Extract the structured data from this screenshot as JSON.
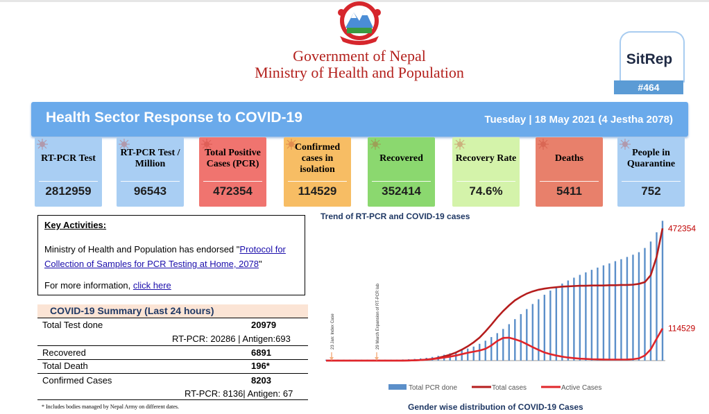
{
  "header": {
    "org_line1": "Government of Nepal",
    "org_line2": "Ministry of Health and Population",
    "sitrep_label": "SitRep",
    "sitrep_number": "#464"
  },
  "banner": {
    "title": "Health Sector Response to COVID-19",
    "date": "Tuesday | 18 May 2021 (4 Jestha 2078)"
  },
  "cards": [
    {
      "label": "RT-PCR Test",
      "value": "2812959",
      "color": "#a9cef3"
    },
    {
      "label": "RT-PCR Test / Million",
      "value": "96543",
      "color": "#a9cef3"
    },
    {
      "label": "Total Positive Cases (PCR)",
      "value": "472354",
      "color": "#f0746f"
    },
    {
      "label": "Confirmed cases in isolation",
      "value": "114529",
      "color": "#f7bd64"
    },
    {
      "label": "Recovered",
      "value": "352414",
      "color": "#8bd86f"
    },
    {
      "label": "Recovery Rate",
      "value": "74.6%",
      "color": "#d4f3aa"
    },
    {
      "label": "Deaths",
      "value": "5411",
      "color": "#e8806b"
    },
    {
      "label": "People in Quarantine",
      "value": "752",
      "color": "#a9cef3"
    }
  ],
  "key_activities": {
    "title": "Key Activities:",
    "text_before": "Ministry of Health and Population has endorsed \"",
    "link_text": "Protocol for Collection of Samples for PCR Testing at Home, 2078",
    "text_after": "\"",
    "more_text": "For more information, ",
    "more_link": "click here"
  },
  "summary": {
    "title": "COVID-19 Summary (Last 24 hours)",
    "total_test_label": "Total Test done",
    "total_test_value": "20979",
    "total_test_breakdown": "RT-PCR: 20286  | Antigen:693",
    "recovered_label": "Recovered",
    "recovered_value": "6891",
    "death_label": "Total Death",
    "death_value": "196*",
    "confirmed_label": "Confirmed Cases",
    "confirmed_value": "8203",
    "confirmed_breakdown": "RT-PCR: 8136| Antigen: 67",
    "footnote": "* Includes bodies managed by Nepal Army on different dates."
  },
  "chart_data": {
    "type": "line",
    "title": "Trend of RT-PCR and COVID-19 cases",
    "annotations": [
      "23 Jan: Index Case",
      "29 March Expansion of RT-PCR lab"
    ],
    "end_labels": [
      "472354",
      "114529"
    ],
    "series": [
      {
        "name": "Total PCR done",
        "kind": "bar",
        "color": "#5b8fc9",
        "values": [
          0.3,
          0.3,
          0.3,
          0.3,
          0.3,
          0.3,
          0.3,
          0.3,
          0.3,
          0.3,
          0.3,
          0.3,
          0.3,
          0.4,
          0.5,
          0.6,
          0.8,
          1.0,
          1.3,
          1.7,
          2.1,
          2.6,
          3.1,
          3.7,
          4.3,
          5.0,
          6.0,
          7.1,
          8.4,
          9.8,
          11.3,
          13.0,
          14.8,
          16.6,
          18.4,
          20.2,
          21.9,
          23.5,
          25.0,
          26.3,
          27.5,
          28.6,
          29.6,
          30.6,
          31.5,
          32.4,
          33.2,
          34.0,
          34.7,
          35.5,
          36.2,
          37.0,
          37.8,
          38.7,
          40.2,
          42.5,
          45.8,
          49.9
        ]
      },
      {
        "name": "Total  cases",
        "kind": "line",
        "color": "#b51d1d",
        "values": [
          0,
          0,
          0,
          0,
          0,
          0,
          0,
          0,
          0,
          0,
          0,
          0,
          0,
          0,
          0.05,
          0.1,
          0.2,
          0.35,
          0.6,
          1.0,
          1.5,
          2.1,
          2.9,
          3.9,
          5.1,
          6.5,
          8.2,
          10.4,
          12.8,
          15.4,
          17.7,
          19.7,
          21.5,
          22.8,
          23.9,
          24.7,
          25.3,
          25.7,
          26.0,
          26.2,
          26.4,
          26.5,
          26.6,
          26.7,
          26.7,
          26.8,
          26.8,
          26.8,
          26.9,
          26.9,
          27.0,
          27.0,
          27.1,
          27.4,
          28.0,
          30.5,
          37.0,
          47.2
        ]
      },
      {
        "name": "Active Cases",
        "kind": "line",
        "color": "#e0252a",
        "values": [
          0,
          0,
          0,
          0,
          0,
          0,
          0,
          0,
          0,
          0,
          0,
          0,
          0,
          0,
          0.05,
          0.1,
          0.2,
          0.35,
          0.55,
          0.8,
          1.1,
          1.4,
          1.8,
          2.3,
          2.8,
          3.2,
          3.6,
          4.2,
          5.4,
          7.0,
          8.1,
          8.2,
          7.6,
          6.9,
          5.9,
          4.8,
          3.8,
          2.9,
          2.3,
          1.8,
          1.4,
          1.1,
          0.9,
          0.7,
          0.6,
          0.5,
          0.45,
          0.4,
          0.38,
          0.37,
          0.37,
          0.4,
          0.5,
          0.8,
          1.8,
          4.0,
          7.8,
          11.45
        ]
      }
    ]
  },
  "gender_title": "Gender wise distribution of COVID-19 Cases"
}
